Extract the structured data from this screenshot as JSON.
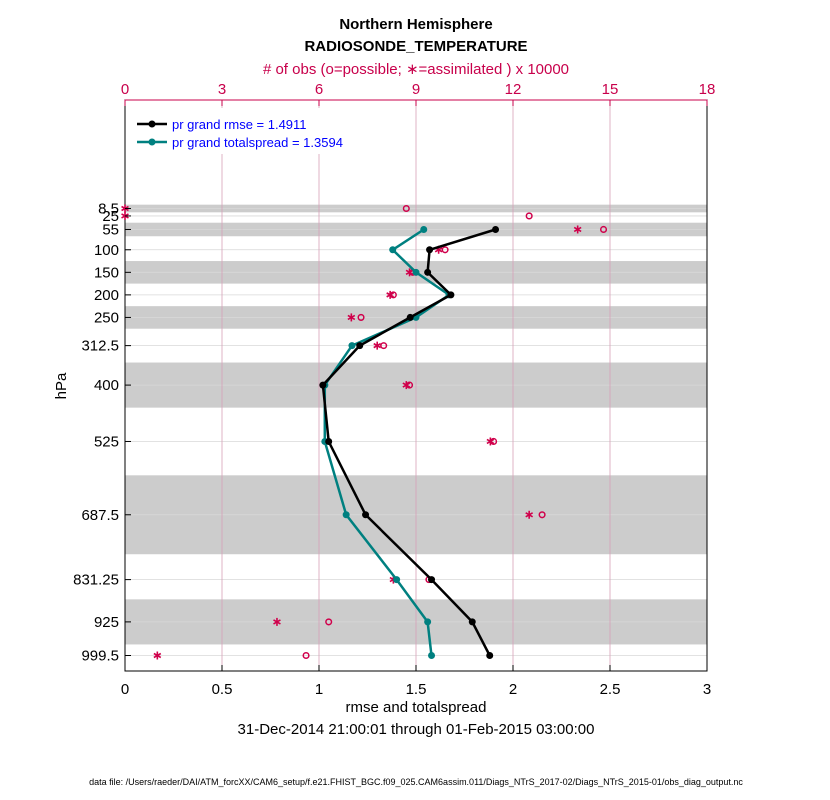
{
  "chart_data": {
    "type": "line",
    "title": "Northern Hemisphere",
    "subtitle": "RADIOSONDE_TEMPERATURE",
    "top_axis_label": "# of obs (o=possible; ∗=assimilated ) x 10000",
    "xlabel": "rmse and totalspread",
    "ylabel": "hPa",
    "date_range": "31-Dec-2014 21:00:01 through 01-Feb-2015 03:00:00",
    "footnote": "data file: /Users/raeder/DAI/ATM_forcXX/CAM6_setup/f.e21.FHIST_BGC.f09_025.CAM6assim.011/Diags_NTrS_2017-02/Diags_NTrS_2015-01/obs_diag_output.nc",
    "xlim": [
      0,
      3
    ],
    "x_ticks": [
      "0",
      "0.5",
      "1",
      "1.5",
      "2",
      "2.5",
      "3"
    ],
    "top_xlim": [
      0,
      18
    ],
    "top_ticks": [
      "0",
      "3",
      "6",
      "9",
      "12",
      "15",
      "18"
    ],
    "levels": [
      "8.5",
      "25",
      "55",
      "100",
      "150",
      "200",
      "250",
      "312.5",
      "400",
      "525",
      "687.5",
      "831.25",
      "925",
      "999.5"
    ],
    "level_values": [
      8.5,
      25,
      55,
      100,
      150,
      200,
      250,
      312.5,
      400,
      525,
      687.5,
      831.25,
      925,
      999.5
    ],
    "series": [
      {
        "name": "pr grand rmse",
        "legend": "pr grand rmse = 1.4911",
        "color": "#000000",
        "levels": [
          55,
          100,
          150,
          200,
          250,
          312.5,
          400,
          525,
          687.5,
          831.25,
          925,
          999.5
        ],
        "values": [
          1.91,
          1.57,
          1.56,
          1.68,
          1.47,
          1.21,
          1.02,
          1.05,
          1.24,
          1.58,
          1.79,
          1.88
        ]
      },
      {
        "name": "pr grand totalspread",
        "legend": "pr grand totalspread = 1.3594",
        "color": "#008080",
        "levels": [
          55,
          100,
          150,
          200,
          250,
          312.5,
          400,
          525,
          687.5,
          831.25,
          925,
          999.5
        ],
        "values": [
          1.54,
          1.38,
          1.5,
          1.67,
          1.5,
          1.17,
          1.03,
          1.03,
          1.14,
          1.4,
          1.56,
          1.58
        ]
      }
    ],
    "obs_possible": {
      "levels": [
        8.5,
        25,
        55,
        100,
        150,
        200,
        250,
        312.5,
        400,
        525,
        687.5,
        831.25,
        925,
        999.5
      ],
      "values": [
        8.7,
        12.5,
        14.8,
        9.9,
        8.9,
        8.3,
        7.3,
        8.0,
        8.8,
        11.4,
        12.9,
        9.4,
        6.3,
        5.6
      ]
    },
    "obs_assimilated": {
      "levels": [
        8.5,
        25,
        55,
        100,
        150,
        200,
        250,
        312.5,
        400,
        525,
        687.5,
        831.25,
        925,
        999.5
      ],
      "values": [
        0.0,
        0.0,
        14.0,
        9.7,
        8.8,
        8.2,
        7.0,
        7.8,
        8.7,
        11.3,
        12.5,
        8.3,
        4.7,
        1.0
      ]
    },
    "shaded_bands": [
      [
        0,
        17
      ],
      [
        40,
        70
      ],
      [
        125,
        175
      ],
      [
        225,
        275
      ],
      [
        350,
        450
      ],
      [
        600,
        775
      ],
      [
        875,
        975
      ]
    ],
    "grid": true
  }
}
